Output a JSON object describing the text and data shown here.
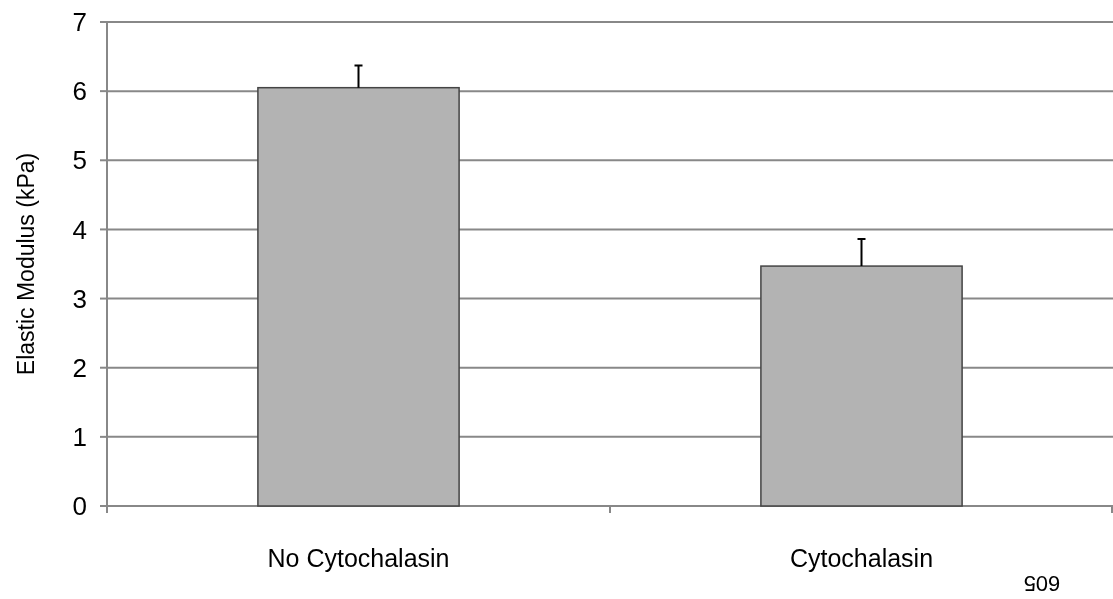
{
  "chart_data": {
    "type": "bar",
    "ylabel": "Elastic Modulus (kPa)",
    "categories": [
      "No Cytochalasin",
      "Cytochalasin"
    ],
    "values": [
      6.05,
      3.47
    ],
    "errors": [
      [
        6.05,
        6.37
      ],
      [
        3.47,
        3.86
      ]
    ],
    "color": "#b3b3b3",
    "ylim": [
      0,
      7
    ],
    "yticks": [
      0,
      1,
      2,
      3,
      4,
      5,
      6,
      7
    ],
    "grid": "y",
    "annotations": [
      "605"
    ]
  }
}
